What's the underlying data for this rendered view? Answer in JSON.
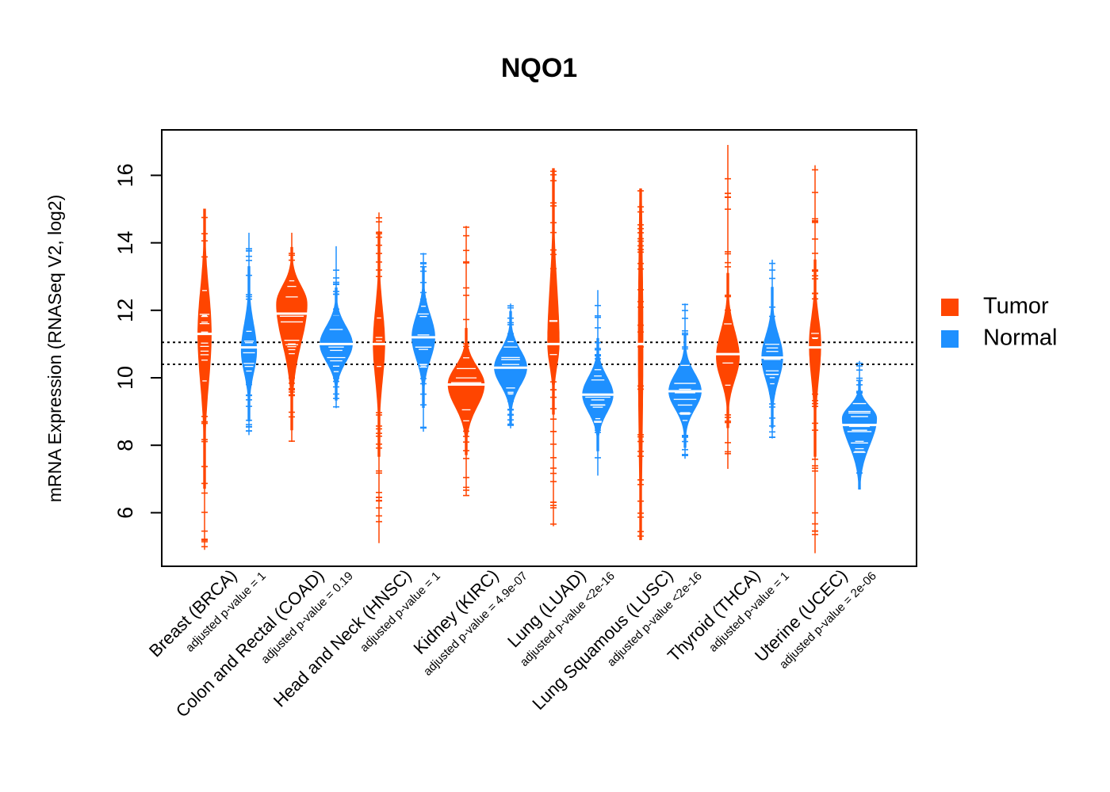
{
  "chart_data": {
    "type": "violin",
    "title": "NQO1",
    "ylabel": "mRNA Expression (RNASeq V2, log2)",
    "xlabel": "",
    "ylim": [
      4.6,
      17.6
    ],
    "yticks": [
      6,
      8,
      10,
      12,
      14,
      16
    ],
    "reference_lines": [
      11.05,
      10.4
    ],
    "legend": {
      "placement": "right",
      "entries": [
        {
          "name": "Tumor",
          "color": "#FF4500"
        },
        {
          "name": "Normal",
          "color": "#1E90FF"
        }
      ]
    },
    "categories": [
      {
        "label": "Breast (BRCA)",
        "pvalue": "adjusted p-value = 1",
        "tumor": {
          "min": 4.9,
          "max": 15.0,
          "median": 11.3,
          "q1": 10.2,
          "q3": 12.3,
          "peak": 11.3,
          "width": 0.35,
          "dense": false
        },
        "normal": {
          "min": 8.3,
          "max": 14.3,
          "median": 10.9,
          "q1": 10.3,
          "q3": 11.4,
          "peak": 10.8,
          "width": 0.4,
          "dense": false
        }
      },
      {
        "label": "Colon and Rectal (COAD)",
        "pvalue": "adjusted p-value = 0.19",
        "tumor": {
          "min": 8.1,
          "max": 14.3,
          "median": 11.9,
          "q1": 11.3,
          "q3": 12.6,
          "peak": 12.2,
          "width": 0.8,
          "dense": true
        },
        "normal": {
          "min": 9.1,
          "max": 13.9,
          "median": 11.0,
          "q1": 10.6,
          "q3": 11.4,
          "peak": 11.0,
          "width": 0.85,
          "dense": true
        }
      },
      {
        "label": "Head and Neck (HNSC)",
        "pvalue": "adjusted p-value = 1",
        "tumor": {
          "min": 5.1,
          "max": 14.9,
          "median": 11.0,
          "q1": 10.2,
          "q3": 11.8,
          "peak": 11.0,
          "width": 0.3,
          "dense": false
        },
        "normal": {
          "min": 8.4,
          "max": 13.7,
          "median": 11.2,
          "q1": 10.7,
          "q3": 11.7,
          "peak": 11.2,
          "width": 0.6,
          "dense": true
        }
      },
      {
        "label": "Kidney (KIRC)",
        "pvalue": "adjusted p-value = 4.9e-07",
        "tumor": {
          "min": 6.5,
          "max": 14.5,
          "median": 9.8,
          "q1": 9.3,
          "q3": 10.2,
          "peak": 9.8,
          "width": 0.95,
          "dense": true
        },
        "normal": {
          "min": 8.5,
          "max": 12.2,
          "median": 10.3,
          "q1": 9.9,
          "q3": 10.7,
          "peak": 10.3,
          "width": 0.85,
          "dense": true
        }
      },
      {
        "label": "Lung (LUAD)",
        "pvalue": "adjusted p-value <2e-16",
        "tumor": {
          "min": 5.6,
          "max": 16.2,
          "median": 11.0,
          "q1": 10.5,
          "q3": 12.3,
          "peak": 11.0,
          "width": 0.3,
          "dense": false
        },
        "normal": {
          "min": 7.1,
          "max": 12.6,
          "median": 9.5,
          "q1": 9.1,
          "q3": 9.9,
          "peak": 9.5,
          "width": 0.8,
          "dense": true
        }
      },
      {
        "label": "Lung Squamous (LUSC)",
        "pvalue": "adjusted p-value <2e-16",
        "tumor": {
          "min": 5.2,
          "max": 15.6,
          "median": 11.0,
          "q1": 8.5,
          "q3": 13.5,
          "peak": 11.0,
          "width": 0.12,
          "dense": false
        },
        "normal": {
          "min": 7.6,
          "max": 12.2,
          "median": 9.6,
          "q1": 9.2,
          "q3": 10.0,
          "peak": 9.6,
          "width": 0.85,
          "dense": true
        }
      },
      {
        "label": "Thyroid (THCA)",
        "pvalue": "adjusted p-value = 1",
        "tumor": {
          "min": 7.3,
          "max": 16.9,
          "median": 10.7,
          "q1": 10.1,
          "q3": 11.2,
          "peak": 10.6,
          "width": 0.6,
          "dense": true
        },
        "normal": {
          "min": 8.2,
          "max": 13.5,
          "median": 10.6,
          "q1": 10.1,
          "q3": 11.1,
          "peak": 10.6,
          "width": 0.55,
          "dense": true
        }
      },
      {
        "label": "Uterine (UCEC)",
        "pvalue": "adjusted p-value = 2e-06",
        "tumor": {
          "min": 4.8,
          "max": 16.3,
          "median": 10.9,
          "q1": 10.2,
          "q3": 11.6,
          "peak": 11.0,
          "width": 0.3,
          "dense": false
        },
        "normal": {
          "min": 6.7,
          "max": 10.5,
          "median": 8.6,
          "q1": 8.2,
          "q3": 9.0,
          "peak": 8.8,
          "width": 0.9,
          "dense": true
        }
      }
    ]
  }
}
